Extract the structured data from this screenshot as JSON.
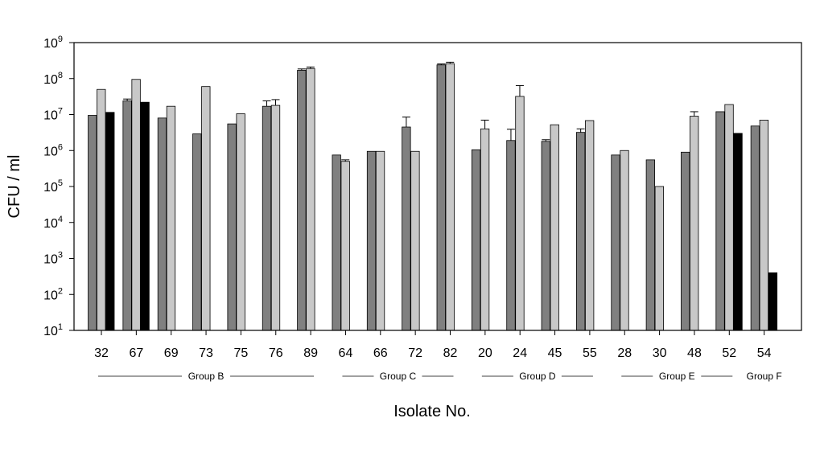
{
  "chart_data": {
    "type": "bar",
    "ylabel": "CFU / ml",
    "xlabel": "Isolate No.",
    "y_scale": "log",
    "ylim": [
      10,
      1000000000
    ],
    "y_ticks": [
      {
        "value": 10,
        "base": "10",
        "exp": "1"
      },
      {
        "value": 100,
        "base": "10",
        "exp": "2"
      },
      {
        "value": 1000,
        "base": "10",
        "exp": "3"
      },
      {
        "value": 10000,
        "base": "10",
        "exp": "4"
      },
      {
        "value": 100000,
        "base": "10",
        "exp": "5"
      },
      {
        "value": 1000000,
        "base": "10",
        "exp": "6"
      },
      {
        "value": 10000000,
        "base": "10",
        "exp": "7"
      },
      {
        "value": 100000000,
        "base": "10",
        "exp": "8"
      },
      {
        "value": 1000000000,
        "base": "10",
        "exp": "9"
      }
    ],
    "categories": [
      "32",
      "67",
      "69",
      "73",
      "75",
      "76",
      "89",
      "64",
      "66",
      "72",
      "82",
      "20",
      "24",
      "45",
      "55",
      "28",
      "30",
      "48",
      "52",
      "54"
    ],
    "series_colors": [
      "#808080",
      "#c8c8c8",
      "#000000"
    ],
    "series": [
      {
        "values": [
          9500000,
          24000000,
          8000000,
          2900000,
          5500000,
          17000000,
          170000000,
          750000,
          950000,
          4500000,
          240000000,
          1050000,
          1900000,
          1800000,
          3200000,
          750000,
          550000,
          900000,
          12000000,
          4800000
        ],
        "errors": [
          0,
          3000000,
          0,
          0,
          0,
          7000000,
          15000000,
          0,
          0,
          4000000,
          15000000,
          0,
          2000000,
          200000,
          800000,
          0,
          0,
          0,
          0,
          0
        ]
      },
      {
        "values": [
          50000000,
          95000000,
          17000000,
          60000000,
          10500000,
          18000000,
          190000000,
          500000,
          950000,
          950000,
          260000000,
          4000000,
          32000000,
          5200000,
          6800000,
          1000000,
          100000,
          9000000,
          19000000,
          7000000
        ],
        "errors": [
          0,
          0,
          0,
          0,
          0,
          8000000,
          20000000,
          50000,
          0,
          0,
          25000000,
          3000000,
          32000000,
          0,
          0,
          0,
          0,
          3000000,
          0,
          0
        ]
      },
      {
        "values": [
          11500000,
          22000000,
          null,
          null,
          null,
          null,
          null,
          null,
          null,
          null,
          null,
          null,
          null,
          null,
          null,
          null,
          null,
          null,
          3000000,
          400
        ],
        "errors": [
          0,
          0,
          0,
          0,
          0,
          0,
          0,
          0,
          0,
          0,
          0,
          0,
          0,
          0,
          0,
          0,
          0,
          0,
          0,
          0
        ]
      }
    ],
    "groups": [
      {
        "label": "Group B",
        "start": 0,
        "end": 6
      },
      {
        "label": "Group C",
        "start": 7,
        "end": 10
      },
      {
        "label": "Group D",
        "start": 11,
        "end": 14
      },
      {
        "label": "Group E",
        "start": 15,
        "end": 18
      },
      {
        "label": "Group F",
        "start": 19,
        "end": 19
      }
    ]
  }
}
